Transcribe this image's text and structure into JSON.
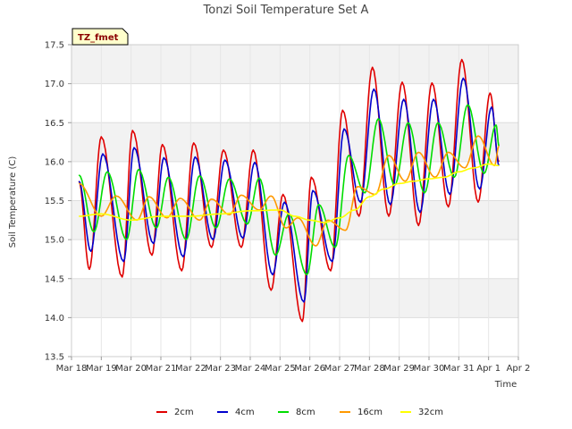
{
  "chart_data": {
    "type": "line",
    "title": "Tonzi Soil Temperature Set A",
    "xlabel": "Time",
    "ylabel": "Soil Temperature (C)",
    "tag_label": "TZ_fmet",
    "ylim": [
      13.5,
      17.5
    ],
    "yticks": [
      13.5,
      14.0,
      14.5,
      15.0,
      15.5,
      16.0,
      16.5,
      17.0,
      17.5
    ],
    "ytick_labels": [
      "13.5",
      "14.0",
      "14.5",
      "15.0",
      "15.5",
      "16.0",
      "16.5",
      "17.0",
      "17.5"
    ],
    "xlim": [
      0,
      15
    ],
    "xticks": [
      0,
      1,
      2,
      3,
      4,
      5,
      6,
      7,
      8,
      9,
      10,
      11,
      12,
      13,
      14,
      15
    ],
    "xtick_labels": [
      "Mar 18",
      "Mar 19",
      "Mar 20",
      "Mar 21",
      "Mar 22",
      "Mar 23",
      "Mar 24",
      "Mar 25",
      "Mar 26",
      "Mar 27",
      "Mar 28",
      "Mar 29",
      "Mar 30",
      "Mar 31",
      "Apr 1",
      "Apr 2"
    ],
    "x_unit": "days since Mar 18",
    "grid": true,
    "legend_position": "bottom",
    "series": [
      {
        "name": "2cm",
        "color": "#e00000",
        "points": [
          [
            0.25,
            15.75
          ],
          [
            0.6,
            14.62
          ],
          [
            1.0,
            16.32
          ],
          [
            1.7,
            14.52
          ],
          [
            2.05,
            16.4
          ],
          [
            2.7,
            14.8
          ],
          [
            3.05,
            16.22
          ],
          [
            3.7,
            14.6
          ],
          [
            4.1,
            16.24
          ],
          [
            4.7,
            14.9
          ],
          [
            5.1,
            16.15
          ],
          [
            5.7,
            14.9
          ],
          [
            6.1,
            16.15
          ],
          [
            6.7,
            14.35
          ],
          [
            7.1,
            15.58
          ],
          [
            7.75,
            13.95
          ],
          [
            8.05,
            15.8
          ],
          [
            8.7,
            14.6
          ],
          [
            9.1,
            16.66
          ],
          [
            9.65,
            15.3
          ],
          [
            10.1,
            17.21
          ],
          [
            10.65,
            15.3
          ],
          [
            11.1,
            17.02
          ],
          [
            11.65,
            15.18
          ],
          [
            12.1,
            17.01
          ],
          [
            12.65,
            15.42
          ],
          [
            13.1,
            17.31
          ],
          [
            13.65,
            15.48
          ],
          [
            14.05,
            16.88
          ],
          [
            14.35,
            16.0
          ]
        ]
      },
      {
        "name": "4cm",
        "color": "#0000cc",
        "points": [
          [
            0.25,
            15.75
          ],
          [
            0.65,
            14.85
          ],
          [
            1.05,
            16.1
          ],
          [
            1.75,
            14.72
          ],
          [
            2.1,
            16.18
          ],
          [
            2.75,
            14.95
          ],
          [
            3.1,
            16.05
          ],
          [
            3.75,
            14.78
          ],
          [
            4.15,
            16.06
          ],
          [
            4.75,
            15.0
          ],
          [
            5.15,
            16.02
          ],
          [
            5.75,
            15.02
          ],
          [
            6.15,
            15.99
          ],
          [
            6.75,
            14.55
          ],
          [
            7.15,
            15.48
          ],
          [
            7.8,
            14.2
          ],
          [
            8.1,
            15.63
          ],
          [
            8.75,
            14.72
          ],
          [
            9.15,
            16.42
          ],
          [
            9.7,
            15.48
          ],
          [
            10.15,
            16.93
          ],
          [
            10.7,
            15.45
          ],
          [
            11.15,
            16.8
          ],
          [
            11.7,
            15.35
          ],
          [
            12.15,
            16.8
          ],
          [
            12.7,
            15.58
          ],
          [
            13.15,
            17.07
          ],
          [
            13.7,
            15.65
          ],
          [
            14.1,
            16.7
          ],
          [
            14.35,
            15.95
          ]
        ]
      },
      {
        "name": "8cm",
        "color": "#00dd00",
        "points": [
          [
            0.25,
            15.83
          ],
          [
            0.75,
            15.1
          ],
          [
            1.2,
            15.87
          ],
          [
            1.85,
            15.0
          ],
          [
            2.25,
            15.9
          ],
          [
            2.85,
            15.15
          ],
          [
            3.25,
            15.8
          ],
          [
            3.85,
            15.0
          ],
          [
            4.3,
            15.82
          ],
          [
            4.85,
            15.15
          ],
          [
            5.3,
            15.78
          ],
          [
            5.9,
            15.2
          ],
          [
            6.3,
            15.79
          ],
          [
            6.85,
            14.8
          ],
          [
            7.3,
            15.33
          ],
          [
            7.9,
            14.55
          ],
          [
            8.3,
            15.45
          ],
          [
            8.85,
            14.9
          ],
          [
            9.3,
            16.08
          ],
          [
            9.85,
            15.6
          ],
          [
            10.3,
            16.55
          ],
          [
            10.85,
            15.7
          ],
          [
            11.3,
            16.5
          ],
          [
            11.85,
            15.6
          ],
          [
            12.3,
            16.5
          ],
          [
            12.85,
            15.8
          ],
          [
            13.3,
            16.73
          ],
          [
            13.85,
            15.85
          ],
          [
            14.25,
            16.47
          ],
          [
            14.35,
            16.2
          ]
        ]
      },
      {
        "name": "16cm",
        "color": "#ff9900",
        "points": [
          [
            0.25,
            15.72
          ],
          [
            1.0,
            15.3
          ],
          [
            1.5,
            15.56
          ],
          [
            2.2,
            15.25
          ],
          [
            2.6,
            15.55
          ],
          [
            3.2,
            15.28
          ],
          [
            3.65,
            15.53
          ],
          [
            4.3,
            15.25
          ],
          [
            4.7,
            15.52
          ],
          [
            5.3,
            15.32
          ],
          [
            5.7,
            15.57
          ],
          [
            6.3,
            15.38
          ],
          [
            6.7,
            15.56
          ],
          [
            7.2,
            15.15
          ],
          [
            7.6,
            15.28
          ],
          [
            8.2,
            14.92
          ],
          [
            8.6,
            15.25
          ],
          [
            9.2,
            15.12
          ],
          [
            9.6,
            15.68
          ],
          [
            10.2,
            15.58
          ],
          [
            10.65,
            16.08
          ],
          [
            11.2,
            15.75
          ],
          [
            11.65,
            16.12
          ],
          [
            12.2,
            15.8
          ],
          [
            12.65,
            16.12
          ],
          [
            13.2,
            15.92
          ],
          [
            13.65,
            16.33
          ],
          [
            14.2,
            15.95
          ],
          [
            14.35,
            16.2
          ]
        ]
      },
      {
        "name": "32cm",
        "color": "#ffff00",
        "points": [
          [
            0.25,
            15.3
          ],
          [
            1.0,
            15.33
          ],
          [
            2.0,
            15.25
          ],
          [
            3.0,
            15.3
          ],
          [
            4.0,
            15.3
          ],
          [
            5.0,
            15.33
          ],
          [
            6.0,
            15.37
          ],
          [
            7.0,
            15.38
          ],
          [
            7.5,
            15.3
          ],
          [
            8.0,
            15.25
          ],
          [
            8.5,
            15.22
          ],
          [
            9.0,
            15.28
          ],
          [
            9.5,
            15.38
          ],
          [
            10.0,
            15.55
          ],
          [
            10.5,
            15.65
          ],
          [
            11.0,
            15.72
          ],
          [
            11.5,
            15.75
          ],
          [
            12.0,
            15.78
          ],
          [
            12.5,
            15.8
          ],
          [
            13.0,
            15.87
          ],
          [
            13.5,
            15.92
          ],
          [
            14.0,
            15.97
          ],
          [
            14.35,
            15.95
          ]
        ]
      }
    ]
  }
}
